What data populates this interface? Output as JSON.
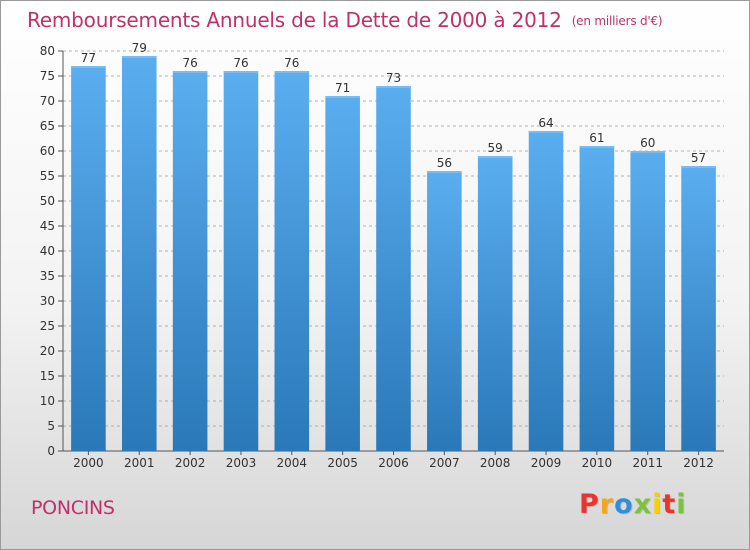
{
  "header": {
    "title": "Remboursements Annuels de la Dette de 2000 à 2012",
    "unit": "(en milliers d'€)"
  },
  "footer": {
    "town": "PONCINS",
    "logo_text": "Proxiti",
    "logo_colors": [
      "#e8362e",
      "#f7a51c",
      "#2f8fd8",
      "#7cc242",
      "#f6d100",
      "#e8362e",
      "#7cc242"
    ]
  },
  "colors": {
    "bar_top": "#5aaef0",
    "bar_bottom": "#2a78b8",
    "grid": "#9a9a9a",
    "title": "#c0306a"
  },
  "chart_data": {
    "type": "bar",
    "title": "Remboursements Annuels de la Dette de 2000 à 2012",
    "xlabel": "",
    "ylabel": "",
    "categories": [
      "2000",
      "2001",
      "2002",
      "2003",
      "2004",
      "2005",
      "2006",
      "2007",
      "2008",
      "2009",
      "2010",
      "2011",
      "2012"
    ],
    "values": [
      77,
      79,
      76,
      76,
      76,
      71,
      73,
      56,
      59,
      64,
      61,
      60,
      57
    ],
    "ylim": [
      0,
      80
    ],
    "yticks": [
      0,
      5,
      10,
      15,
      20,
      25,
      30,
      35,
      40,
      45,
      50,
      55,
      60,
      65,
      70,
      75,
      80
    ],
    "grid": true,
    "data_labels": true
  }
}
